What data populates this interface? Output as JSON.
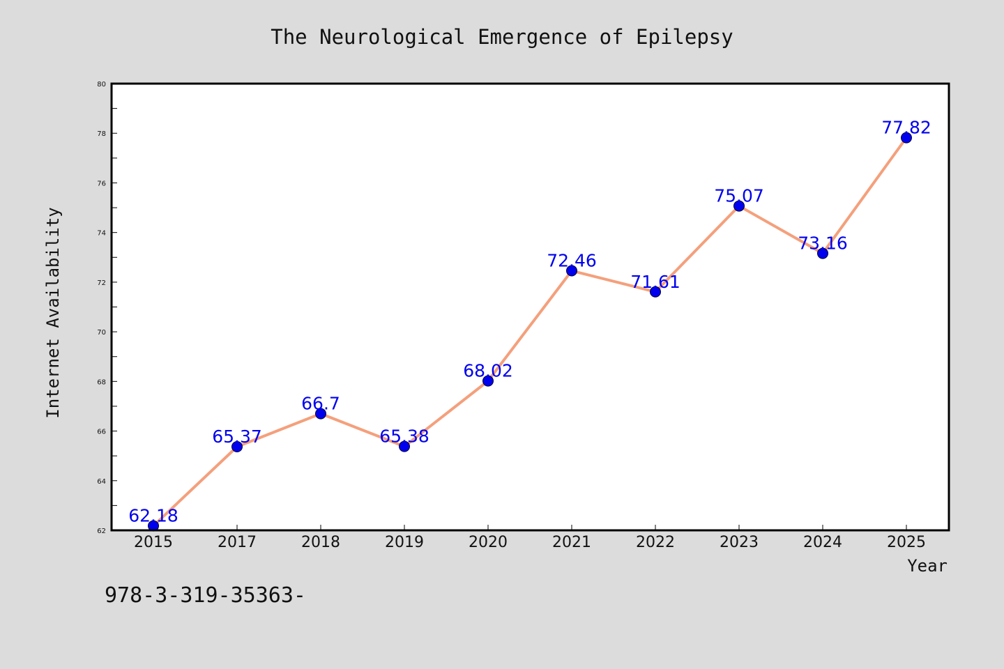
{
  "chart_data": {
    "type": "line",
    "title": "The Neurological Emergence of Epilepsy",
    "xlabel": "Year",
    "ylabel": "Internet Availability",
    "categories": [
      "2015",
      "2017",
      "2018",
      "2019",
      "2020",
      "2021",
      "2022",
      "2023",
      "2024",
      "2025"
    ],
    "series": [
      {
        "values": [
          62.18,
          65.37,
          66.7,
          65.38,
          68.02,
          72.46,
          71.61,
          75.07,
          73.16,
          77.82
        ],
        "data_labels": [
          "62.18",
          "65.37",
          "66.7",
          "65.38",
          "68.02",
          "72.46",
          "71.61",
          "75.07",
          "73.16",
          "77.82"
        ]
      }
    ],
    "ylim": [
      62,
      80
    ],
    "yticks": [
      "62",
      "64",
      "66",
      "68",
      "70",
      "72",
      "74",
      "76",
      "78",
      "80"
    ],
    "grid": false,
    "legend": "none",
    "colors": {
      "line": "#f4a07c",
      "marker": "#0000ee",
      "data_label": "#0000ee",
      "background": "#dcdcdc",
      "plot_background": "#ffffff"
    }
  },
  "footer_note": "978-3-319-35363-"
}
